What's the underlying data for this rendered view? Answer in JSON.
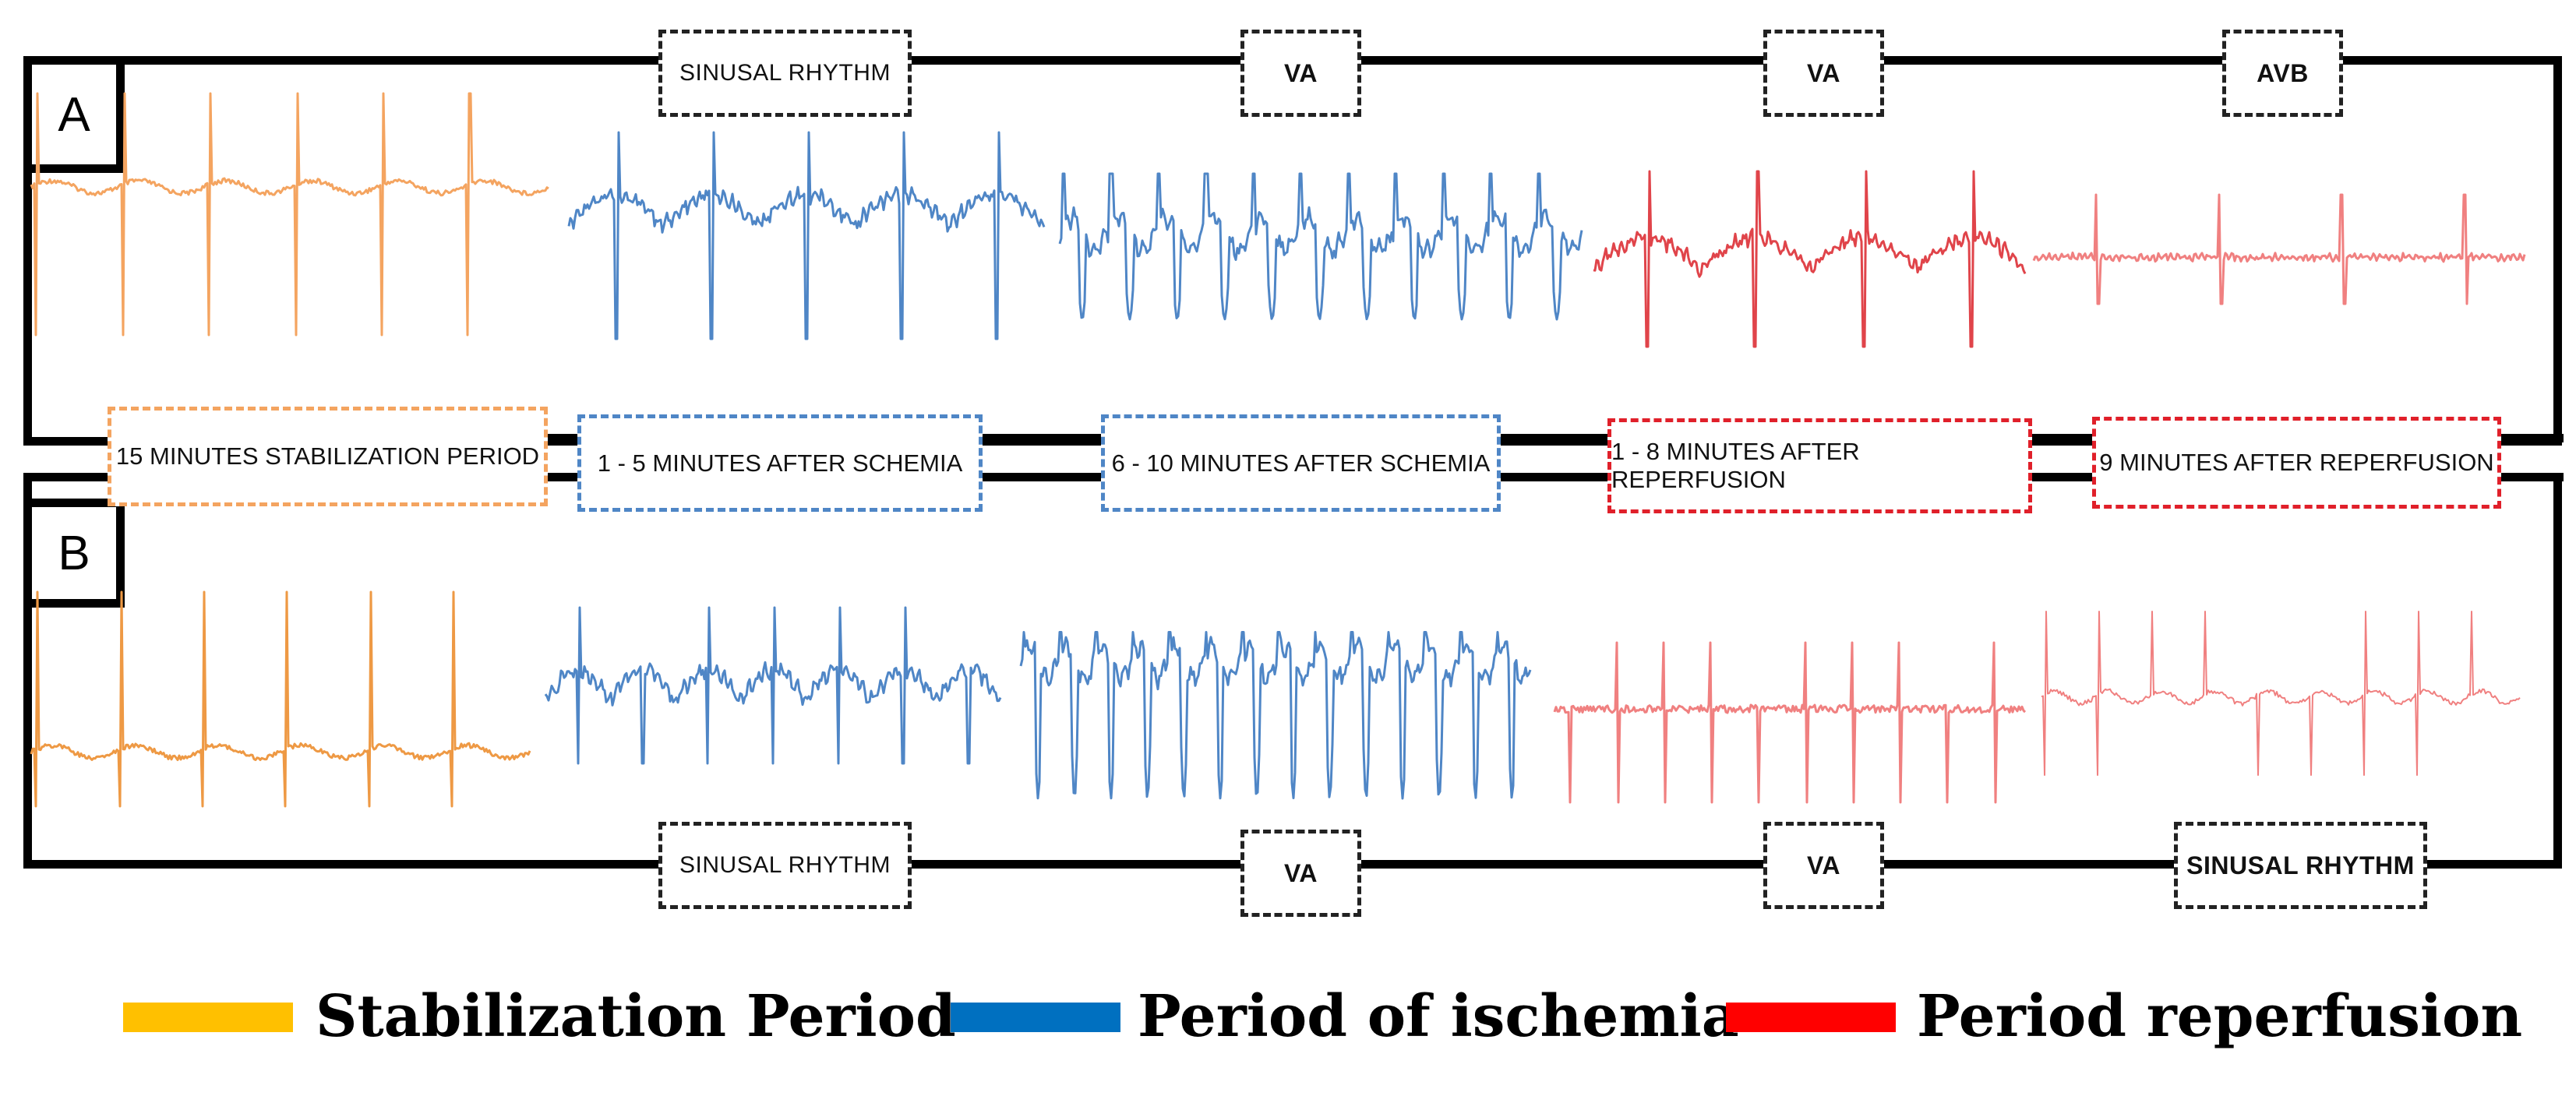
{
  "colors": {
    "stabilization": "#F4A460",
    "stabilization_dark": "#EE9944",
    "ischemia": "#4F86C6",
    "reperfusion": "#E0444A",
    "reperfusion_light": "#F08080",
    "legend_stabilization": "#FFC000",
    "legend_ischemia": "#0070C0",
    "legend_reperfusion": "#FF0000"
  },
  "panels": {
    "a": {
      "label": "A"
    },
    "b": {
      "label": "B"
    }
  },
  "top_rhythms": [
    "SINUSAL RHYTHM",
    "VA",
    "VA",
    "AVB"
  ],
  "bottom_rhythms": [
    "SINUSAL RHYTHM",
    "VA",
    "VA",
    "SINUSAL RHYTHM"
  ],
  "periods": [
    {
      "label": "15 MINUTES STABILIZATION PERIOD",
      "color": "#F4A460"
    },
    {
      "label": "1 - 5 MINUTES AFTER SCHEMIA",
      "color": "#4F86C6"
    },
    {
      "label": "6 - 10 MINUTES AFTER  SCHEMIA",
      "color": "#4F86C6"
    },
    {
      "label": "1 - 8 MINUTES AFTER REPERFUSION",
      "color": "#E0202A"
    },
    {
      "label": "9  MINUTES AFTER REPERFUSION",
      "color": "#E0202A"
    }
  ],
  "legend": [
    {
      "label": "Stabilization Period",
      "color": "#FFC000"
    },
    {
      "label": "Period of ischemia",
      "color": "#0070C0"
    },
    {
      "label": "Period reperfusion",
      "color": "#FF0000"
    }
  ],
  "ecg_traces": {
    "a": [
      {
        "pattern": "sinus",
        "color": "#F4A460",
        "beats": 6
      },
      {
        "pattern": "sinus-wavy",
        "color": "#4F86C6",
        "beats": 5
      },
      {
        "pattern": "va",
        "color": "#4F86C6",
        "beats": 11
      },
      {
        "pattern": "va-wavy",
        "color": "#E0444A",
        "beats": 4
      },
      {
        "pattern": "avb",
        "color": "#F08080",
        "beats": 4
      }
    ],
    "b": [
      {
        "pattern": "sinus",
        "color": "#EE9944",
        "beats": 6
      },
      {
        "pattern": "sinus-wavy",
        "color": "#4F86C6",
        "beats": 7
      },
      {
        "pattern": "va",
        "color": "#4F86C6",
        "beats": 14
      },
      {
        "pattern": "va-spiky",
        "color": "#F08080",
        "beats": 10
      },
      {
        "pattern": "sinus-thin",
        "color": "#F08080",
        "beats": 9
      }
    ]
  }
}
